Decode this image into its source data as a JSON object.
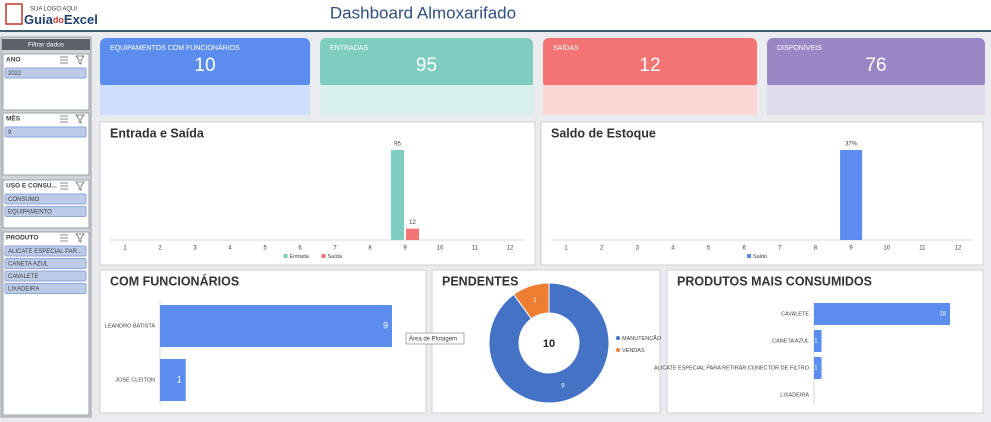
{
  "header": {
    "logo_tagline": "SUA LOGO AQUI",
    "logo_parts": [
      "Guia",
      "do",
      "Excel"
    ],
    "title": "Dashboard Almoxarifado"
  },
  "sidebar": {
    "title": "Filtrar dados",
    "slicers": [
      {
        "title": "ANO",
        "items": [
          "2022"
        ]
      },
      {
        "title": "MÊS",
        "items": [
          "9"
        ]
      },
      {
        "title": "USO E CONSU...",
        "items": [
          "CONSUMO",
          "EQUIPAMENTO"
        ]
      },
      {
        "title": "PRODUTO",
        "items": [
          "ALICATE ESPECIAL PAR...",
          "CANETA AZUL",
          "CAVALETE",
          "LIXADEIRA"
        ]
      }
    ]
  },
  "kpis": [
    {
      "label": "EQUIPAMENTOS COM FUNCIONÁRIOS",
      "value": 10,
      "color": "#5b8def"
    },
    {
      "label": "ENTRADAS",
      "value": 95,
      "color": "#7ecdc0"
    },
    {
      "label": "SAÍDAS",
      "value": 12,
      "color": "#f47373"
    },
    {
      "label": "DISPONÍVEIS",
      "value": 76,
      "color": "#9b86c5"
    }
  ],
  "chart_data": [
    {
      "type": "bar",
      "title": "Entrada e Saída",
      "categories": [
        1,
        2,
        3,
        4,
        5,
        6,
        7,
        8,
        9,
        10,
        11,
        12
      ],
      "series": [
        {
          "name": "Entrada",
          "color": "#7ecdc0",
          "values": [
            null,
            null,
            null,
            null,
            null,
            null,
            null,
            null,
            95,
            null,
            null,
            null
          ]
        },
        {
          "name": "Saída",
          "color": "#f47373",
          "values": [
            null,
            null,
            null,
            null,
            null,
            null,
            null,
            null,
            12,
            null,
            null,
            null
          ]
        }
      ]
    },
    {
      "type": "bar",
      "title": "Saldo de Estoque",
      "categories": [
        1,
        2,
        3,
        4,
        5,
        6,
        7,
        8,
        9,
        10,
        11,
        12
      ],
      "series": [
        {
          "name": "Saldo",
          "color": "#5b8def",
          "values": [
            null,
            null,
            null,
            null,
            null,
            null,
            null,
            null,
            37,
            null,
            null,
            null
          ],
          "value_labels": [
            null,
            null,
            null,
            null,
            null,
            null,
            null,
            null,
            "37%",
            null,
            null,
            null
          ]
        }
      ]
    },
    {
      "type": "barh",
      "title": "COM FUNCIONÁRIOS",
      "categories": [
        "LEANDRO BATISTA",
        "JOSÉ CLEITON"
      ],
      "values": [
        9,
        1
      ],
      "color": "#5b8def"
    },
    {
      "type": "donut",
      "title": "PENDENTES",
      "categories": [
        "MANUTENÇÃO",
        "VENDAS"
      ],
      "values": [
        9,
        1
      ],
      "colors": [
        "#4472c4",
        "#ed7d31"
      ],
      "total": 10
    },
    {
      "type": "barh",
      "title": "PRODUTOS MAIS CONSUMIDOS",
      "categories": [
        "CAVALETE",
        "CANETA AZUL",
        "ALICATE ESPECIAL PARA RETIRAR CONECTOR DE FILTRO",
        "LIXADEIRA"
      ],
      "values": [
        18,
        1,
        1,
        null
      ],
      "color": "#5b8def"
    }
  ],
  "tooltip": "Área de Plotagem"
}
